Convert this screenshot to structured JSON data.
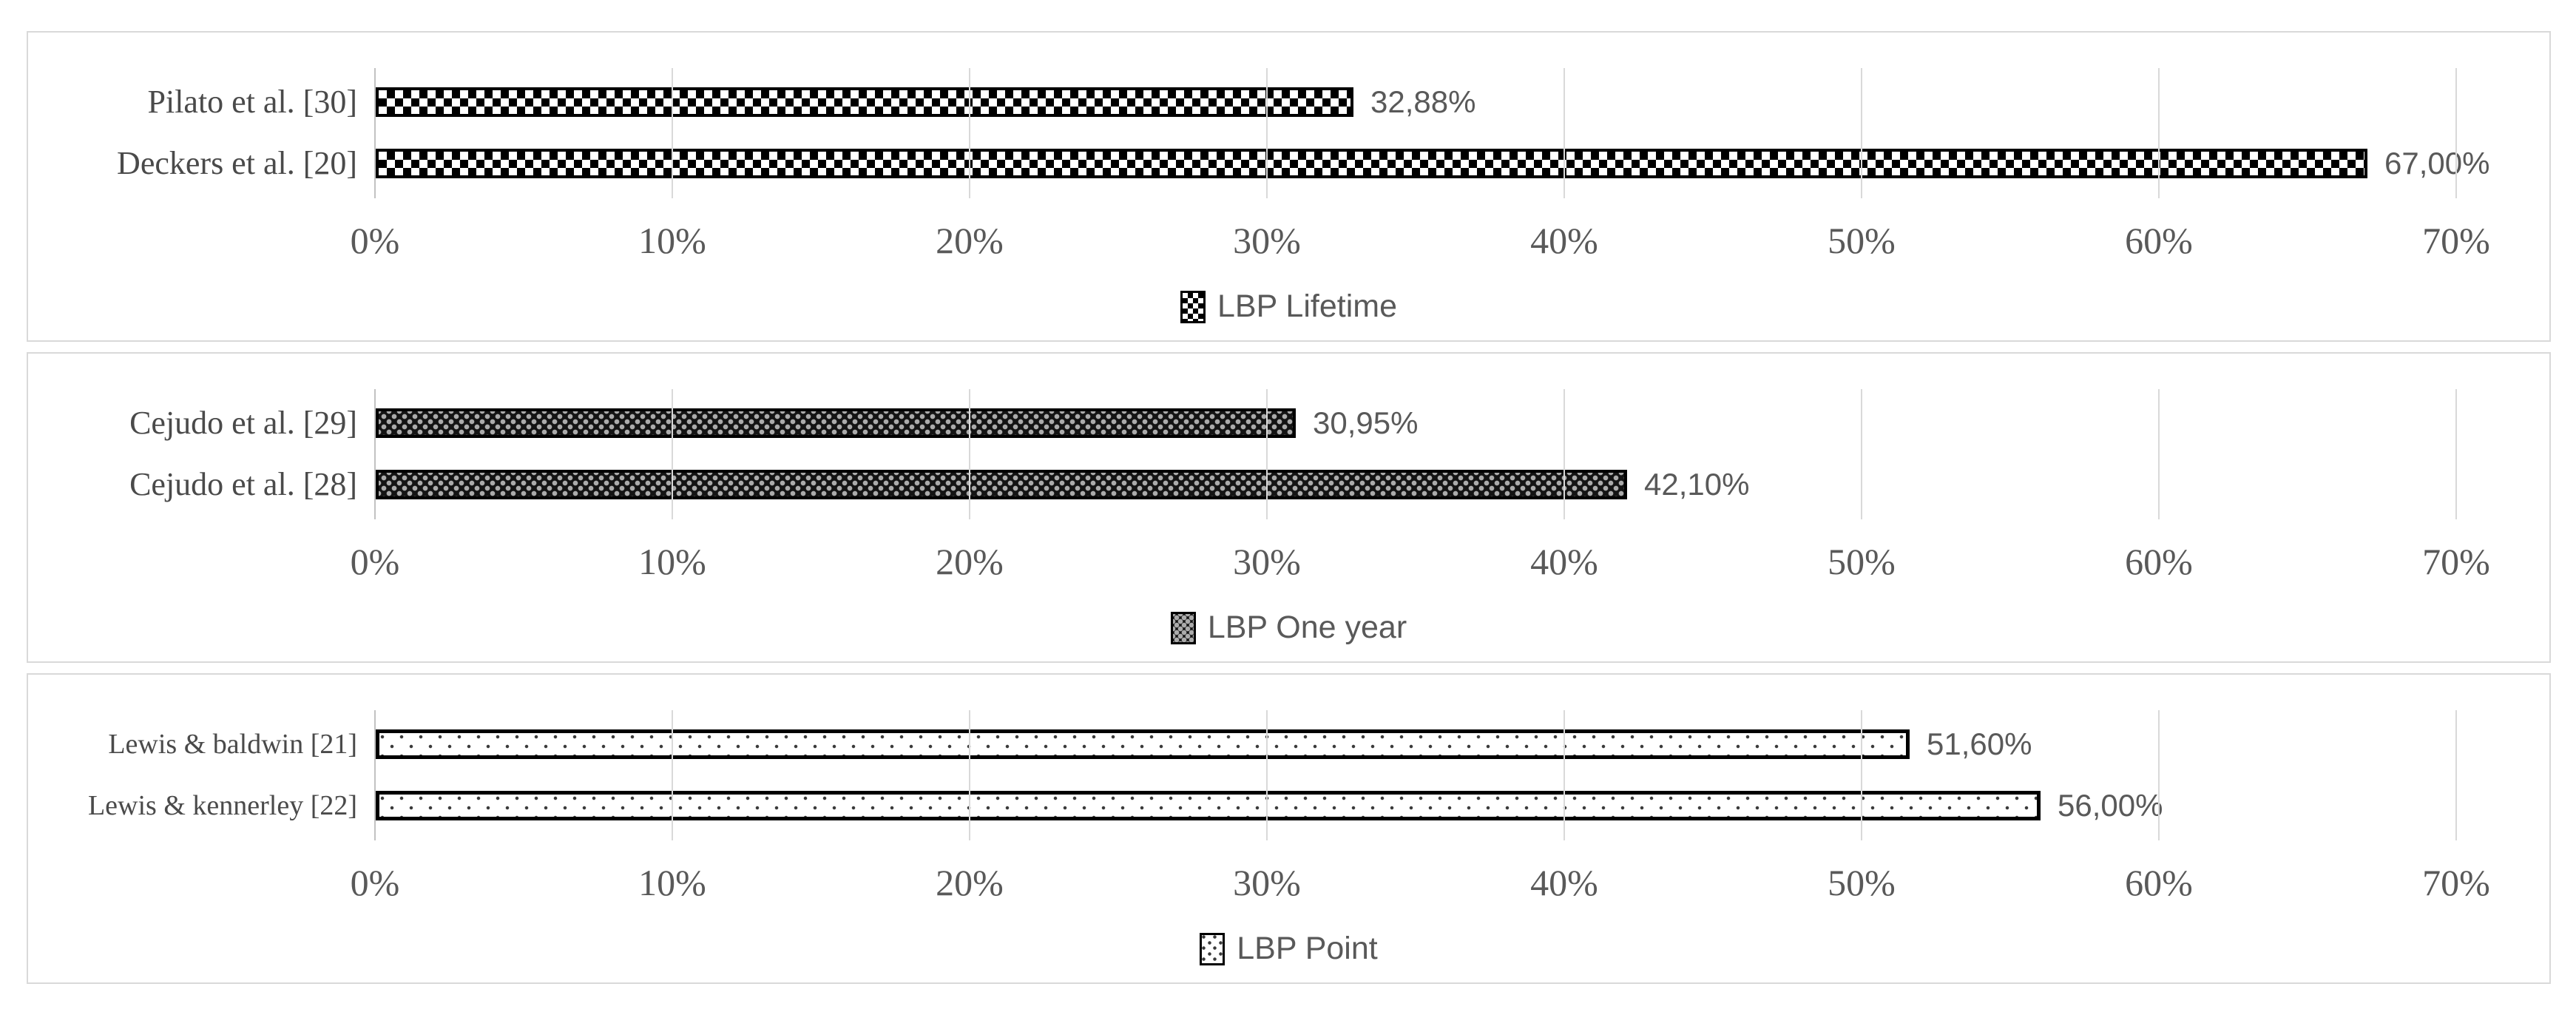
{
  "colors": {
    "panel_border": "#d9d9d9",
    "gridline": "#d9d9d9",
    "axis_line": "#c2c2c2",
    "label_text": "#595959",
    "category_text": "#4a4a4a",
    "bar_border": "#000000",
    "dark_pattern_bg": "#141414",
    "dark_pattern_dot": "#ababab",
    "light_pattern_dot": "#3a3a3a"
  },
  "chart_data": [
    {
      "type": "bar",
      "orientation": "horizontal",
      "legend": "LBP Lifetime",
      "legend_position": "bottom",
      "pattern": "checkerboard",
      "categories": [
        "Pilato et al. [30]",
        "Deckers et al. [20]"
      ],
      "values": [
        32.88,
        67.0
      ],
      "value_labels": [
        "32,88%",
        "67,00%"
      ],
      "x_ticks": [
        "0%",
        "10%",
        "20%",
        "30%",
        "40%",
        "50%",
        "60%",
        "70%"
      ],
      "xlim": [
        0,
        73
      ],
      "grid": true
    },
    {
      "type": "bar",
      "orientation": "horizontal",
      "legend": "LBP One year",
      "legend_position": "bottom",
      "pattern": "dotted-diamond-dark",
      "categories": [
        "Cejudo et al. [29]",
        "Cejudo et al. [28]"
      ],
      "values": [
        30.95,
        42.1
      ],
      "value_labels": [
        "30,95%",
        "42,10%"
      ],
      "x_ticks": [
        "0%",
        "10%",
        "20%",
        "30%",
        "40%",
        "50%",
        "60%",
        "70%"
      ],
      "xlim": [
        0,
        73
      ],
      "grid": true
    },
    {
      "type": "bar",
      "orientation": "horizontal",
      "legend": "LBP Point",
      "legend_position": "bottom",
      "pattern": "dotted-light",
      "categories": [
        "Lewis & baldwin [21]",
        "Lewis & kennerley [22]"
      ],
      "values": [
        51.6,
        56.0
      ],
      "value_labels": [
        "51,60%",
        "56,00%"
      ],
      "x_ticks": [
        "0%",
        "10%",
        "20%",
        "30%",
        "40%",
        "50%",
        "60%",
        "70%"
      ],
      "xlim": [
        0,
        73
      ],
      "grid": true
    }
  ]
}
